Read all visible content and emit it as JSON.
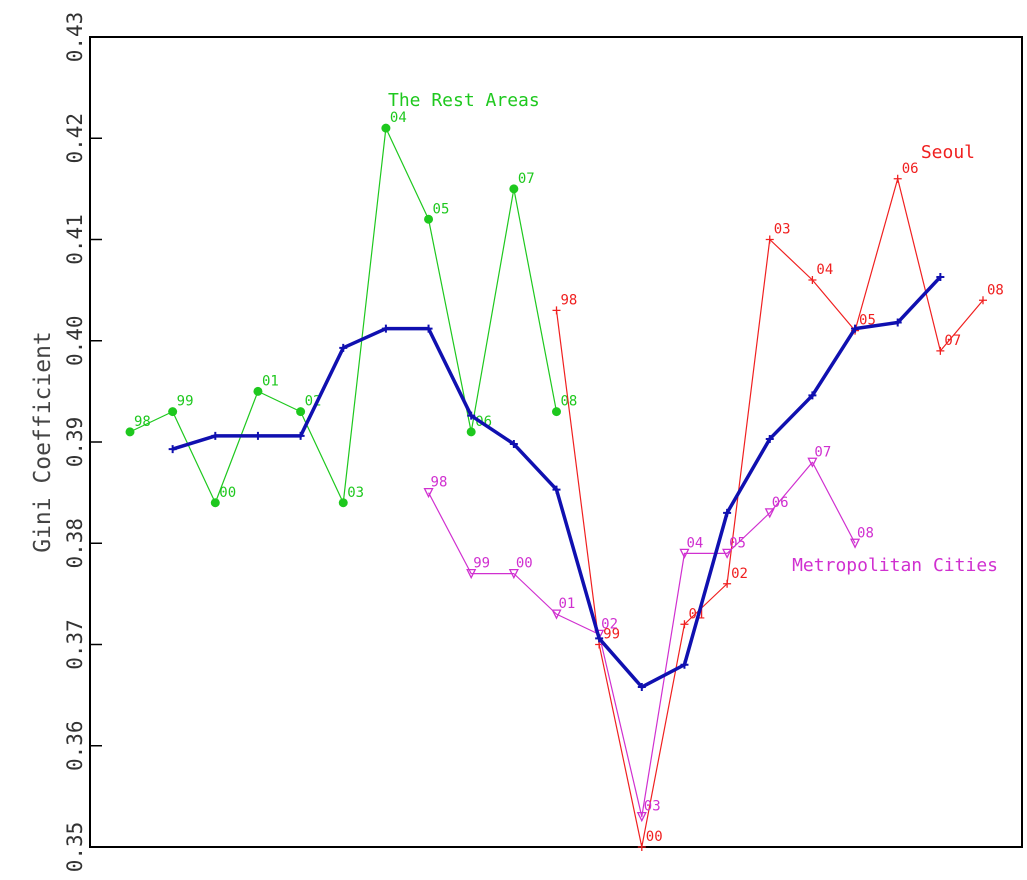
{
  "chart_data": {
    "type": "line",
    "ylabel": "Gini Coefficient",
    "xlabel": "",
    "ylim": [
      0.35,
      0.43
    ],
    "yticks": [
      "0.35",
      "0.36",
      "0.37",
      "0.38",
      "0.39",
      "0.40",
      "0.41",
      "0.42",
      "0.43"
    ],
    "series": [
      {
        "name": "The Rest Areas",
        "color": "#1ec81e",
        "marker": "dot",
        "x": [
          1,
          2,
          3,
          4,
          5,
          6,
          7,
          8,
          9,
          10,
          11
        ],
        "y": [
          0.391,
          0.393,
          0.384,
          0.395,
          0.393,
          0.384,
          0.421,
          0.412,
          0.391,
          0.415,
          0.393
        ],
        "point_labels": [
          "98",
          "99",
          "00",
          "01",
          "02",
          "03",
          "04",
          "05",
          "06",
          "07",
          "08"
        ]
      },
      {
        "name": "Seoul",
        "color": "#f02020",
        "marker": "plus",
        "x": [
          11,
          12,
          13,
          14,
          15,
          16,
          17,
          18,
          19,
          20,
          21
        ],
        "y": [
          0.403,
          0.37,
          0.35,
          0.372,
          0.376,
          0.41,
          0.406,
          0.401,
          0.416,
          0.399,
          0.404
        ],
        "point_labels": [
          "98",
          "99",
          "00",
          "01",
          "02",
          "03",
          "04",
          "05",
          "06",
          "07",
          "08"
        ]
      },
      {
        "name": "Metropolitan Cities",
        "color": "#d030d0",
        "marker": "triangle",
        "x": [
          8,
          9,
          10,
          11,
          12,
          13,
          14,
          15,
          16,
          17,
          18
        ],
        "y": [
          0.385,
          0.377,
          0.377,
          0.373,
          0.371,
          0.353,
          0.379,
          0.379,
          0.383,
          0.388,
          0.38
        ],
        "point_labels": [
          "98",
          "99",
          "00",
          "01",
          "02",
          "03",
          "04",
          "05",
          "06",
          "07",
          "08"
        ]
      },
      {
        "color": "#1010b0",
        "marker": "plus",
        "bold": true,
        "x": [
          2,
          3,
          4,
          5,
          6,
          7,
          8,
          9,
          10,
          11,
          12,
          13,
          14,
          15,
          16,
          17,
          18,
          19,
          20
        ],
        "y": [
          0.3893,
          0.3906,
          0.3906,
          0.3906,
          0.3993,
          0.4012,
          0.4012,
          0.3926,
          0.3898,
          0.3853,
          0.3706,
          0.3658,
          0.368,
          0.383,
          0.3903,
          0.3946,
          0.4012,
          0.4018,
          0.4063
        ]
      }
    ],
    "group_labels": [
      {
        "text": "The Rest Areas",
        "series": 0
      },
      {
        "text": "Seoul",
        "series": 1
      },
      {
        "text": "Metropolitan Cities",
        "series": 2
      }
    ]
  }
}
